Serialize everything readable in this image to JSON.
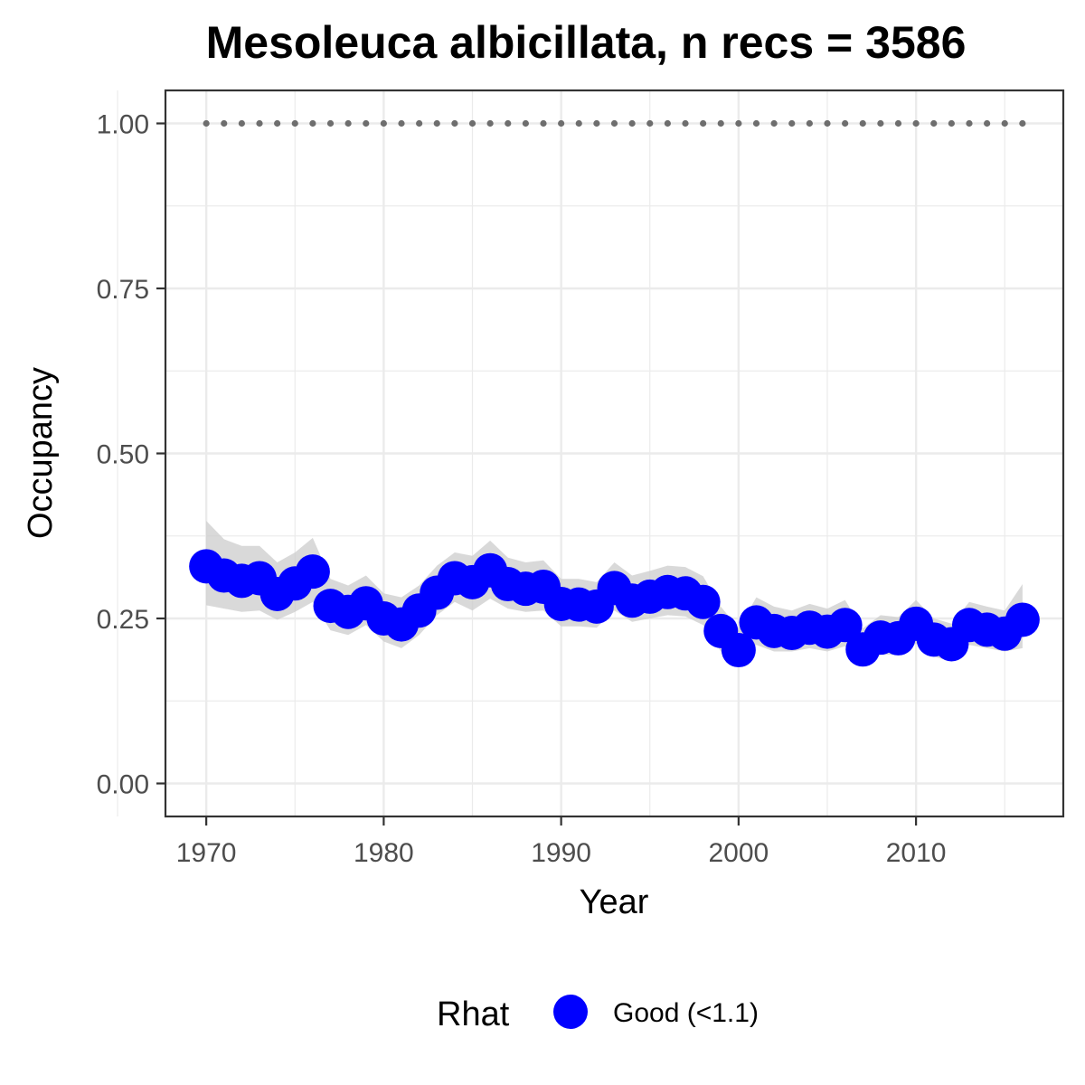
{
  "chart_data": {
    "type": "line",
    "title": "Mesoleuca albicillata, n recs = 3586",
    "xlabel": "Year",
    "ylabel": "Occupancy",
    "xlim": [
      1967.7,
      2018.3
    ],
    "ylim": [
      -0.05,
      1.05
    ],
    "x_ticks": [
      1970,
      1980,
      1990,
      2000,
      2010
    ],
    "x_tick_labels": [
      "1970",
      "1980",
      "1990",
      "2000",
      "2010"
    ],
    "y_ticks": [
      0,
      0.25,
      0.5,
      0.75,
      1.0
    ],
    "y_tick_labels": [
      "0.00",
      "0.25",
      "0.50",
      "0.75",
      "1.00"
    ],
    "grid": true,
    "legend": {
      "title": "Rhat",
      "placement": "bottom",
      "entries": [
        {
          "label": "Good (<1.1)",
          "color": "#0000ff"
        }
      ]
    },
    "colors": {
      "points": "#0000ff",
      "ribbon": "#cccccc",
      "reference": "#6e6e6e",
      "grid": "#ebebeb",
      "border": "#333333"
    },
    "reference_line": {
      "y": 1.0,
      "style": "dotted",
      "x_range": [
        1970,
        2016
      ]
    },
    "x": [
      1970,
      1971,
      1972,
      1973,
      1974,
      1975,
      1976,
      1977,
      1978,
      1979,
      1980,
      1981,
      1982,
      1983,
      1984,
      1985,
      1986,
      1987,
      1988,
      1989,
      1990,
      1991,
      1992,
      1993,
      1994,
      1995,
      1996,
      1997,
      1998,
      1999,
      2000,
      2001,
      2002,
      2003,
      2004,
      2005,
      2006,
      2007,
      2008,
      2009,
      2010,
      2011,
      2012,
      2013,
      2014,
      2015,
      2016
    ],
    "series": [
      {
        "values": [
          0.329,
          0.315,
          0.307,
          0.311,
          0.287,
          0.303,
          0.321,
          0.269,
          0.26,
          0.273,
          0.25,
          0.241,
          0.262,
          0.289,
          0.311,
          0.305,
          0.323,
          0.302,
          0.295,
          0.298,
          0.272,
          0.271,
          0.268,
          0.296,
          0.277,
          0.283,
          0.29,
          0.288,
          0.275,
          0.231,
          0.202,
          0.244,
          0.231,
          0.228,
          0.236,
          0.23,
          0.24,
          0.203,
          0.221,
          0.22,
          0.242,
          0.218,
          0.211,
          0.24,
          0.233,
          0.227,
          0.248
        ],
        "lower": [
          0.27,
          0.265,
          0.26,
          0.262,
          0.248,
          0.26,
          0.275,
          0.232,
          0.225,
          0.24,
          0.215,
          0.205,
          0.225,
          0.255,
          0.275,
          0.262,
          0.28,
          0.265,
          0.26,
          0.262,
          0.238,
          0.238,
          0.236,
          0.262,
          0.245,
          0.25,
          0.255,
          0.253,
          0.24,
          0.2,
          0.176,
          0.21,
          0.2,
          0.2,
          0.205,
          0.2,
          0.208,
          0.178,
          0.195,
          0.195,
          0.212,
          0.192,
          0.185,
          0.21,
          0.205,
          0.2,
          0.205
        ],
        "upper": [
          0.398,
          0.37,
          0.36,
          0.36,
          0.335,
          0.35,
          0.372,
          0.31,
          0.3,
          0.315,
          0.288,
          0.282,
          0.3,
          0.33,
          0.35,
          0.345,
          0.368,
          0.342,
          0.335,
          0.338,
          0.31,
          0.31,
          0.305,
          0.335,
          0.315,
          0.322,
          0.33,
          0.328,
          0.314,
          0.268,
          0.235,
          0.282,
          0.268,
          0.262,
          0.272,
          0.265,
          0.278,
          0.235,
          0.255,
          0.252,
          0.278,
          0.25,
          0.242,
          0.275,
          0.268,
          0.262,
          0.302
        ]
      }
    ]
  }
}
